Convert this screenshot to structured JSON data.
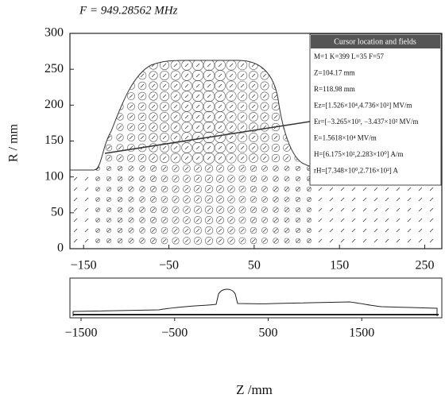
{
  "chart_data": {
    "type": "field",
    "title": "F = 949.28562 MHz",
    "ylabel": "R / mm",
    "xlabel": "Z /mm",
    "xlim": [
      -166,
      270
    ],
    "xticks": [
      {
        "value": -150,
        "label": "−150"
      },
      {
        "value": -50,
        "label": "−50"
      },
      50,
      150,
      250
    ],
    "ylim": [
      0,
      300
    ],
    "yticks": [
      0,
      50,
      100,
      150,
      200,
      250,
      300
    ],
    "overview_xlim": [
      -1619,
      2356
    ],
    "overview_xticks": [
      {
        "value": -1500,
        "label": "−1500"
      },
      {
        "value": -500,
        "label": "−500"
      },
      500,
      1500
    ],
    "cursor_box": {
      "title": "Cursor location and fields",
      "lines": [
        "M=1  K=399  L=35 F=57",
        "Z=104.17 mm",
        "R=118.98 mm",
        "Ez=[1.526×10⁴,4.736×10²]  MV/m",
        "Er=[−3.265×10³, −3.437×10²  MV/m",
        "E=1.5618×10⁴  MV/m",
        "H=[6.175×10²,2.283×10⁰]  A/m",
        "rH=[7.348×10⁰,2.716×10²]  A"
      ]
    }
  }
}
